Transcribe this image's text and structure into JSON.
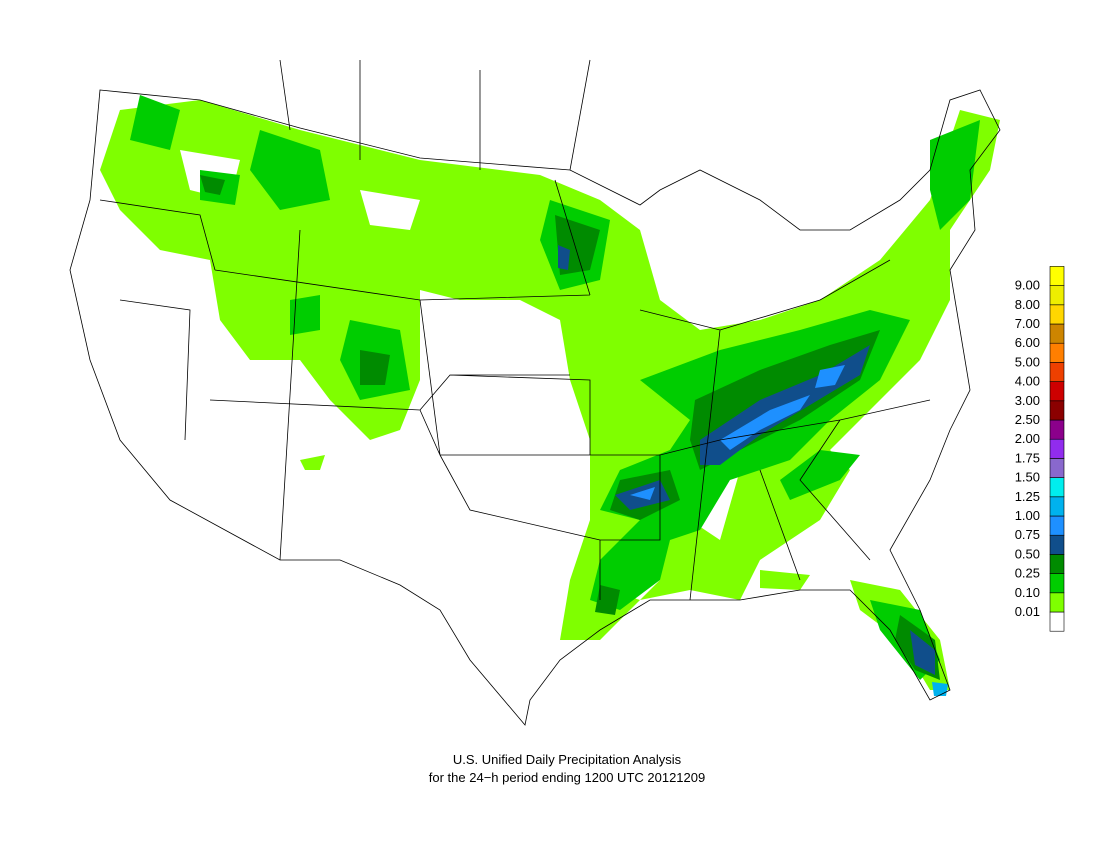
{
  "title": {
    "line1": "U.S. Unified Daily Precipitation Analysis",
    "line2": "for the 24−h period ending 1200 UTC 20121209"
  },
  "legend": {
    "labels": [
      "0.01",
      "0.10",
      "0.25",
      "0.50",
      "0.75",
      "1.00",
      "1.25",
      "1.50",
      "1.75",
      "2.00",
      "2.50",
      "3.00",
      "4.00",
      "5.00",
      "6.00",
      "7.00",
      "8.00",
      "9.00"
    ],
    "colors": [
      "#ffffff",
      "#7fff00",
      "#00cd00",
      "#008b00",
      "#104e8b",
      "#1e90ff",
      "#00b2ee",
      "#00eeee",
      "#8968cd",
      "#912cee",
      "#8b008b",
      "#8b0000",
      "#cd0000",
      "#ee4000",
      "#ff7f00",
      "#cd8500",
      "#ffd700",
      "#eeee00",
      "#ffff00"
    ]
  }
}
